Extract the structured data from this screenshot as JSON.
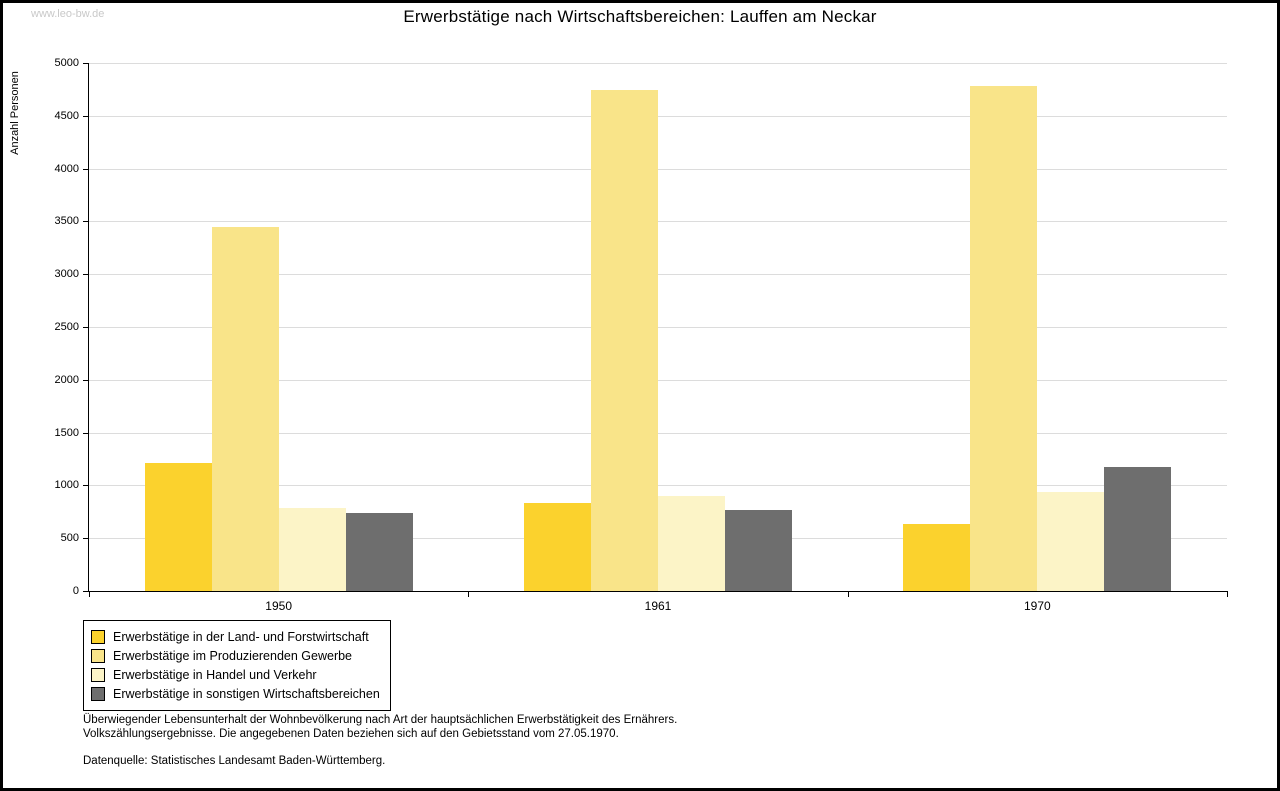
{
  "watermark": "www.leo-bw.de",
  "title": "Erwerbstätige nach Wirtschaftsbereichen: Lauffen am Neckar",
  "chart_data": {
    "type": "bar",
    "title": "Erwerbstätige nach Wirtschaftsbereichen: Lauffen am Neckar",
    "xlabel": "",
    "ylabel": "Anzahl Personen",
    "ylim": [
      0,
      5000
    ],
    "ytick_step": 500,
    "grid": true,
    "legend_position": "bottom-left",
    "categories": [
      "1950",
      "1961",
      "1970"
    ],
    "series": [
      {
        "name": "Erwerbstätige in der Land- und Forstwirtschaft",
        "color": "#FBD22D",
        "values": [
          1210,
          830,
          630
        ]
      },
      {
        "name": "Erwerbstätige im Produzierenden Gewerbe",
        "color": "#F9E489",
        "values": [
          3450,
          4740,
          4780
        ]
      },
      {
        "name": "Erwerbstätige in Handel und Verkehr",
        "color": "#FCF4C7",
        "values": [
          790,
          900,
          940
        ]
      },
      {
        "name": "Erwerbstätige in sonstigen Wirtschaftsbereichen",
        "color": "#6E6E6E",
        "values": [
          740,
          770,
          1170
        ]
      }
    ]
  },
  "footnotes": {
    "line1": "Überwiegender Lebensunterhalt der Wohnbevölkerung nach Art der hauptsächlichen Erwerbstätigkeit des Ernährers.",
    "line2": "Volkszählungsergebnisse. Die angegebenen Daten beziehen sich auf den Gebietsstand vom 27.05.1970.",
    "source": "Datenquelle: Statistisches Landesamt Baden-Württemberg."
  }
}
